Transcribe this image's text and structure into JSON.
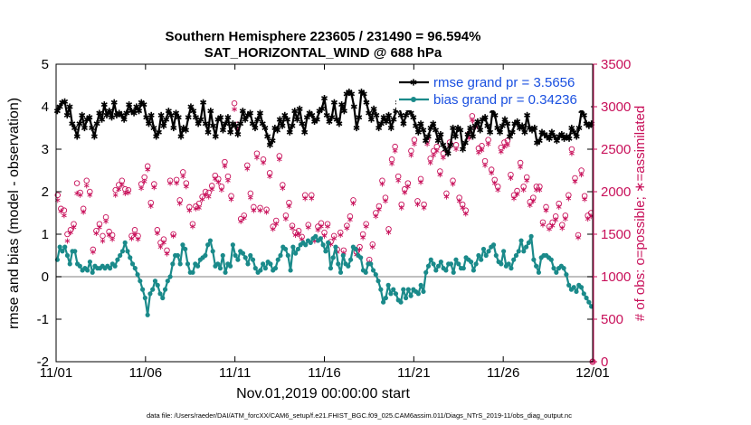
{
  "chart_data": {
    "type": "line",
    "title": "Southern Hemisphere 223605 / 231490 = 96.594%",
    "subtitle": "SAT_HORIZONTAL_WIND @ 688 hPa",
    "xlabel": "Nov.01,2019 00:00:00 start",
    "ylabel": "rmse and bias (model - observation)",
    "ylabel_right": "# of obs: o=possible; ∗=assimilated",
    "x_tick_labels": [
      "11/01",
      "11/06",
      "11/11",
      "11/16",
      "11/21",
      "11/26",
      "12/01"
    ],
    "x_ticks": [
      0,
      5,
      10,
      15,
      20,
      25,
      30
    ],
    "xlim": [
      0,
      30
    ],
    "ylim": [
      -2,
      5
    ],
    "y_ticks": [
      -2,
      -1,
      0,
      1,
      2,
      3,
      4,
      5
    ],
    "ylim_right": [
      0,
      3500
    ],
    "y_ticks_right": [
      0,
      500,
      1000,
      1500,
      2000,
      2500,
      3000,
      3500
    ],
    "footer": "data file: /Users/raeder/DAI/ATM_forcXX/CAM6_setup/f.e21.FHIST_BGC.f09_025.CAM6assim.011/Diags_NTrS_2019-11/obs_diag_output.nc",
    "series": [
      {
        "name": "rmse grand pr = 3.5656",
        "axis": "left",
        "color": "#000000",
        "marker": "asterisk",
        "values": [
          3.9,
          4.0,
          4.1,
          4.12,
          3.8,
          4.0,
          3.6,
          3.5,
          3.3,
          3.6,
          3.8,
          3.5,
          3.7,
          3.75,
          3.5,
          3.3,
          3.6,
          3.85,
          3.7,
          4.05,
          3.8,
          3.9,
          3.75,
          4.1,
          3.8,
          3.85,
          3.8,
          3.7,
          3.85,
          4.05,
          3.9,
          3.85,
          4.0,
          3.9,
          4.1,
          4.05,
          3.75,
          3.6,
          3.8,
          3.5,
          3.3,
          3.4,
          3.8,
          3.55,
          3.7,
          3.9,
          3.8,
          3.5,
          3.85,
          3.75,
          3.3,
          3.5,
          3.45,
          3.75,
          4.0,
          3.9,
          3.75,
          3.6,
          3.7,
          4.1,
          3.6,
          3.4,
          3.9,
          3.55,
          3.3,
          3.7,
          3.75,
          3.45,
          3.6,
          3.75,
          3.4,
          3.6,
          3.55,
          3.35,
          3.6,
          3.9,
          3.7,
          3.8,
          3.85,
          3.6,
          3.5,
          3.7,
          3.85,
          3.6,
          3.5,
          3.3,
          3.1,
          3.2,
          3.5,
          3.45,
          3.7,
          3.55,
          3.8,
          3.7,
          3.4,
          3.55,
          3.9,
          3.7,
          3.95,
          3.6,
          3.4,
          3.75,
          3.85,
          3.8,
          3.65,
          3.7,
          3.9,
          3.95,
          4.2,
          3.8,
          3.65,
          3.75,
          4.1,
          3.7,
          3.6,
          4.05,
          3.9,
          4.3,
          4.35,
          4.3,
          4.0,
          3.5,
          3.75,
          4.35,
          4.3,
          4.1,
          3.85,
          3.7,
          3.95,
          3.8,
          3.5,
          3.6,
          3.75,
          3.65,
          3.8,
          3.5,
          3.7,
          3.9,
          4.1,
          3.8,
          3.6,
          3.8,
          3.95,
          3.85,
          3.75,
          3.55,
          3.4,
          3.6,
          3.45,
          3.2,
          3.3,
          3.5,
          3.6,
          3.45,
          3.2,
          3.35,
          3.1,
          3.0,
          2.9,
          3.1,
          3.5,
          3.3,
          3.5,
          3.45,
          3.0,
          3.15,
          3.35,
          3.5,
          3.3,
          3.55,
          3.65,
          3.45,
          3.7,
          3.75,
          3.55,
          3.4,
          3.9,
          3.8,
          3.5,
          3.4,
          3.55,
          3.7,
          3.6,
          3.3,
          3.4,
          3.6,
          3.65,
          3.5,
          3.55,
          3.4,
          3.8,
          3.5,
          3.45,
          3.5,
          3.15,
          3.2,
          3.4,
          3.35,
          3.3,
          3.25,
          3.4,
          3.3,
          3.2,
          3.3,
          3.35,
          3.25,
          3.3,
          3.25,
          3.5,
          3.4,
          3.3,
          3.5,
          3.9,
          3.8,
          3.6,
          3.55,
          3.6
        ]
      },
      {
        "name": "bias grand pr = 0.34236",
        "axis": "left",
        "color": "#1a8a8a",
        "marker": "dot",
        "values": [
          0.4,
          0.7,
          0.6,
          0.7,
          0.5,
          0.3,
          0.6,
          0.6,
          0.3,
          0.25,
          0.15,
          0.2,
          0.15,
          0.35,
          0.1,
          0.25,
          0.2,
          0.2,
          0.25,
          0.2,
          0.25,
          0.2,
          0.3,
          0.25,
          0.4,
          0.5,
          0.6,
          0.8,
          0.6,
          0.45,
          0.3,
          0.2,
          0.05,
          -0.1,
          -0.3,
          -0.5,
          -0.9,
          -0.4,
          -0.3,
          -0.1,
          -0.2,
          -0.4,
          -0.5,
          -0.3,
          -0.1,
          0.0,
          0.3,
          0.5,
          0.5,
          0.3,
          0.75,
          0.65,
          0.3,
          0.1,
          0.1,
          0.3,
          0.25,
          0.4,
          0.45,
          0.5,
          0.75,
          0.85,
          0.6,
          0.25,
          0.3,
          0.2,
          0.5,
          0.1,
          0.3,
          0.25,
          0.75,
          0.5,
          0.4,
          0.6,
          0.55,
          0.45,
          0.3,
          0.5,
          0.4,
          0.2,
          0.1,
          0.15,
          0.3,
          0.2,
          0.35,
          0.3,
          0.15,
          0.2,
          0.4,
          0.5,
          0.7,
          0.65,
          0.5,
          0.15,
          0.7,
          0.55,
          0.65,
          0.75,
          0.8,
          0.75,
          0.85,
          0.8,
          0.9,
          0.95,
          0.85,
          0.9,
          0.75,
          0.6,
          0.8,
          0.2,
          0.45,
          0.7,
          0.3,
          0.1,
          0.5,
          0.3,
          0.25,
          0.4,
          0.7,
          0.65,
          0.5,
          0.45,
          0.15,
          0.1,
          0.3,
          0.3,
          0.15,
          0.05,
          -0.1,
          -0.3,
          -0.6,
          -0.5,
          -0.2,
          -0.4,
          -0.3,
          -0.4,
          -0.55,
          -0.6,
          -0.3,
          -0.5,
          -0.3,
          -0.45,
          -0.3,
          -0.35,
          -0.4,
          -0.2,
          -0.35,
          0.1,
          0.25,
          0.4,
          0.3,
          0.15,
          0.25,
          0.35,
          0.2,
          0.15,
          0.3,
          0.3,
          0.1,
          0.4,
          0.3,
          0.2,
          0.2,
          0.45,
          0.4,
          0.35,
          0.15,
          0.3,
          0.5,
          0.4,
          0.65,
          0.5,
          0.6,
          0.7,
          0.75,
          0.5,
          0.35,
          0.3,
          0.6,
          0.25,
          0.3,
          0.2,
          0.4,
          0.5,
          0.6,
          0.85,
          0.6,
          0.7,
          0.8,
          0.95,
          0.4,
          0.25,
          0.1,
          0.45,
          0.5,
          0.5,
          0.45,
          0.4,
          0.2,
          0.1,
          0.2,
          0.25,
          0.2,
          0.05,
          -0.2,
          -0.3,
          -0.25,
          -0.35,
          -0.2,
          -0.25,
          -0.4,
          -0.5,
          -0.6,
          -0.7
        ]
      },
      {
        "name": "possible obs",
        "axis": "right",
        "color": "#c8105a",
        "marker": "circle",
        "values": [
          1960,
          1800,
          1780,
          1500,
          1550,
          1620,
          2100,
          1990,
          1800,
          2130,
          2000,
          1320,
          1540,
          1620,
          1480,
          1700,
          1530,
          1490,
          2020,
          2080,
          2130,
          2030,
          2020,
          1480,
          1550,
          1480,
          2090,
          2170,
          2300,
          1870,
          2090,
          1550,
          1400,
          1440,
          1310,
          2130,
          1500,
          2140,
          1900,
          2230,
          2100,
          1820,
          1620,
          1830,
          1860,
          1940,
          2000,
          1990,
          2070,
          2190,
          2150,
          2060,
          2350,
          2180,
          1950,
          3040,
          2790,
          1680,
          1720,
          2310,
          1980,
          1820,
          2450,
          1810,
          2380,
          1790,
          2220,
          1590,
          1660,
          2420,
          2080,
          1720,
          1870,
          1600,
          1520,
          1540,
          1470,
          1960,
          1610,
          1960,
          1450,
          1590,
          1630,
          1520,
          1620,
          1410,
          1480,
          1320,
          1520,
          1310,
          1600,
          1710,
          1900,
          1290,
          1350,
          1500,
          1620,
          1200,
          1380,
          1750,
          1830,
          2130,
          1930,
          1560,
          2380,
          2530,
          2180,
          1850,
          2030,
          2100,
          2480,
          2610,
          1890,
          2150,
          1850,
          2610,
          2390,
          2480,
          2530,
          2240,
          2450,
          1980,
          2580,
          2130,
          2550,
          1930,
          1850,
          1780,
          2680,
          2890,
          2810,
          2510,
          2540,
          2360,
          2610,
          2260,
          2140,
          2060,
          2520,
          2580,
          2600,
          2200,
          1960,
          2010,
          2340,
          2060,
          2170,
          1880,
          1930,
          2060,
          2060,
          1640,
          1820,
          1590,
          1640,
          1710,
          1860,
          1610,
          1720,
          1960,
          2500,
          2160,
          1490,
          2250,
          1950,
          1720,
          1750
        ]
      },
      {
        "name": "assimilated obs",
        "axis": "right",
        "color": "#c8105a",
        "marker": "asterisk",
        "values": [
          1900,
          1770,
          1720,
          1420,
          1520,
          1580,
          1980,
          1960,
          1760,
          2070,
          1960,
          1290,
          1510,
          1580,
          1420,
          1650,
          1490,
          1440,
          1960,
          2030,
          2080,
          1980,
          1990,
          1450,
          1500,
          1440,
          2040,
          2120,
          2260,
          1830,
          2050,
          1510,
          1350,
          1400,
          1270,
          2100,
          1480,
          2100,
          1860,
          2180,
          2060,
          1780,
          1590,
          1800,
          1810,
          1910,
          1960,
          1940,
          2030,
          2150,
          2110,
          2020,
          2300,
          2130,
          1910,
          2970,
          2740,
          1650,
          1690,
          2270,
          1930,
          1780,
          2400,
          1780,
          2340,
          1760,
          2180,
          1560,
          1620,
          2380,
          2040,
          1680,
          1830,
          1570,
          1490,
          1500,
          1440,
          1920,
          1580,
          1920,
          1420,
          1550,
          1590,
          1480,
          1590,
          1380,
          1450,
          1290,
          1490,
          1280,
          1570,
          1670,
          1860,
          1260,
          1320,
          1460,
          1590,
          1170,
          1350,
          1710,
          1790,
          2090,
          1890,
          1520,
          2330,
          2480,
          2130,
          1810,
          1990,
          2060,
          2430,
          2560,
          1850,
          2110,
          1810,
          2560,
          2340,
          2430,
          2480,
          2200,
          2400,
          1940,
          2530,
          2090,
          2500,
          1890,
          1810,
          1740,
          2630,
          2840,
          2760,
          2460,
          2490,
          2310,
          2560,
          2220,
          2100,
          2020,
          2470,
          2530,
          2550,
          2160,
          1920,
          1970,
          2290,
          2020,
          2130,
          1840,
          1890,
          2020,
          2020,
          1610,
          1780,
          1560,
          1600,
          1670,
          1820,
          1570,
          1680,
          1920,
          2450,
          2120,
          1460,
          2200,
          1910,
          1680,
          1710
        ]
      }
    ],
    "end_zero_obs": 0
  }
}
